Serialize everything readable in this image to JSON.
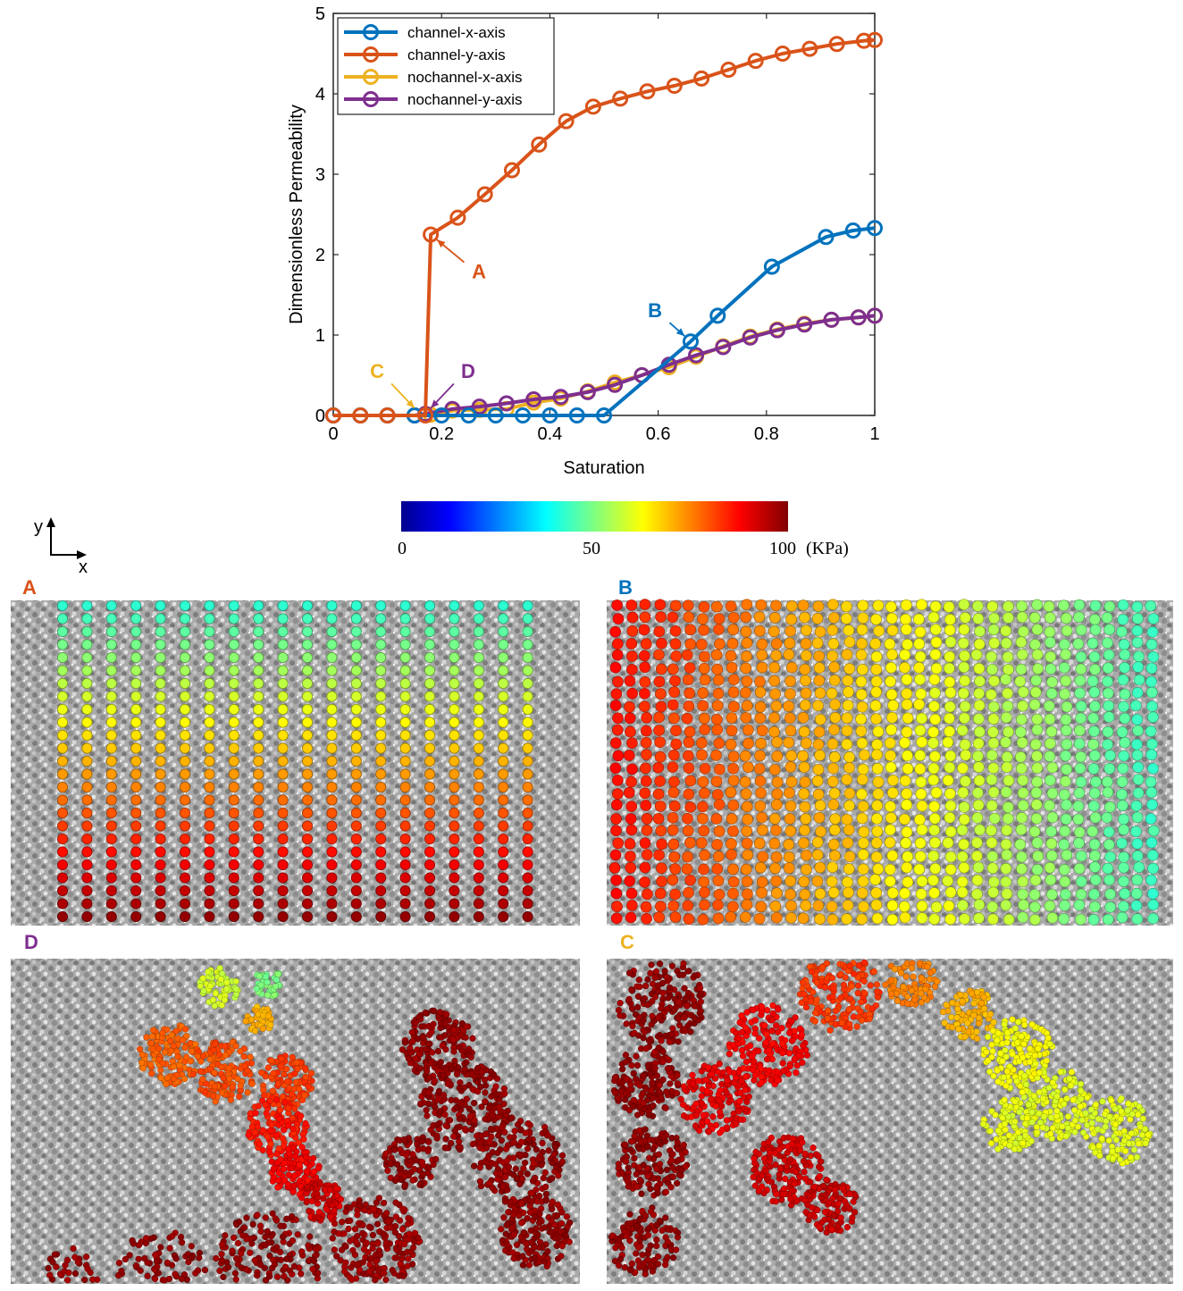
{
  "chart_data": {
    "type": "line",
    "xlabel": "Saturation",
    "ylabel": "Dimensionless Permeability",
    "xlim": [
      0,
      1
    ],
    "ylim": [
      0,
      5
    ],
    "xticks": [
      "0",
      "0.2",
      "0.4",
      "0.6",
      "0.8",
      "1"
    ],
    "yticks": [
      "0",
      "1",
      "2",
      "3",
      "4",
      "5"
    ],
    "legend_position": "top-left",
    "grid": false,
    "series": [
      {
        "name": "channel-x-axis",
        "color": "#0072BD",
        "points": [
          [
            0,
            0
          ],
          [
            0.05,
            0
          ],
          [
            0.1,
            0
          ],
          [
            0.15,
            0
          ],
          [
            0.2,
            0
          ],
          [
            0.25,
            0
          ],
          [
            0.3,
            0
          ],
          [
            0.35,
            0
          ],
          [
            0.4,
            0
          ],
          [
            0.45,
            0
          ],
          [
            0.5,
            0
          ],
          [
            0.66,
            0.92
          ],
          [
            0.71,
            1.24
          ],
          [
            0.81,
            1.85
          ],
          [
            0.91,
            2.22
          ],
          [
            0.96,
            2.3
          ],
          [
            1.0,
            2.33
          ]
        ]
      },
      {
        "name": "channel-y-axis",
        "color": "#D95319",
        "points": [
          [
            0,
            0
          ],
          [
            0.05,
            0
          ],
          [
            0.1,
            0
          ],
          [
            0.17,
            0
          ],
          [
            0.18,
            2.25
          ],
          [
            0.23,
            2.46
          ],
          [
            0.28,
            2.75
          ],
          [
            0.33,
            3.05
          ],
          [
            0.38,
            3.37
          ],
          [
            0.43,
            3.66
          ],
          [
            0.48,
            3.84
          ],
          [
            0.53,
            3.94
          ],
          [
            0.58,
            4.03
          ],
          [
            0.63,
            4.1
          ],
          [
            0.68,
            4.19
          ],
          [
            0.73,
            4.3
          ],
          [
            0.78,
            4.41
          ],
          [
            0.83,
            4.5
          ],
          [
            0.88,
            4.56
          ],
          [
            0.93,
            4.62
          ],
          [
            0.98,
            4.66
          ],
          [
            1.0,
            4.67
          ]
        ]
      },
      {
        "name": "nochannel-x-axis",
        "color": "#EDB120",
        "points": [
          [
            0,
            0
          ],
          [
            0.05,
            0
          ],
          [
            0.1,
            0
          ],
          [
            0.15,
            0
          ],
          [
            0.18,
            0.01
          ],
          [
            0.22,
            0.06
          ],
          [
            0.27,
            0.07
          ],
          [
            0.32,
            0.08
          ],
          [
            0.37,
            0.16
          ],
          [
            0.42,
            0.21
          ],
          [
            0.47,
            0.3
          ],
          [
            0.52,
            0.41
          ],
          [
            0.57,
            0.5
          ],
          [
            0.62,
            0.6
          ],
          [
            0.67,
            0.73
          ],
          [
            0.72,
            0.86
          ],
          [
            0.77,
            0.98
          ],
          [
            0.82,
            1.07
          ],
          [
            0.87,
            1.14
          ],
          [
            0.92,
            1.19
          ],
          [
            0.97,
            1.22
          ],
          [
            1.0,
            1.24
          ]
        ]
      },
      {
        "name": "nochannel-y-axis",
        "color": "#7E2F8E",
        "points": [
          [
            0,
            0
          ],
          [
            0.05,
            0
          ],
          [
            0.1,
            0
          ],
          [
            0.15,
            0
          ],
          [
            0.17,
            0.02
          ],
          [
            0.22,
            0.08
          ],
          [
            0.27,
            0.11
          ],
          [
            0.32,
            0.15
          ],
          [
            0.37,
            0.2
          ],
          [
            0.42,
            0.23
          ],
          [
            0.47,
            0.29
          ],
          [
            0.52,
            0.38
          ],
          [
            0.57,
            0.5
          ],
          [
            0.62,
            0.63
          ],
          [
            0.67,
            0.75
          ],
          [
            0.72,
            0.85
          ],
          [
            0.77,
            0.97
          ],
          [
            0.82,
            1.06
          ],
          [
            0.87,
            1.13
          ],
          [
            0.92,
            1.19
          ],
          [
            0.97,
            1.22
          ],
          [
            1.0,
            1.24
          ]
        ]
      }
    ],
    "annotations": [
      {
        "label": "A",
        "color": "#D95319",
        "point": [
          0.18,
          2.25
        ]
      },
      {
        "label": "B",
        "color": "#0072BD",
        "point": [
          0.66,
          0.92
        ]
      },
      {
        "label": "C",
        "color": "#EDB120",
        "point": [
          0.16,
          0.02
        ]
      },
      {
        "label": "D",
        "color": "#7E2F8E",
        "point": [
          0.17,
          0.02
        ]
      }
    ]
  },
  "colorbar": {
    "ticks": [
      "0",
      "50",
      "100"
    ],
    "unit": "(KPa)",
    "range": [
      0,
      100
    ],
    "colors": [
      "#00008F",
      "#0000FF",
      "#0080FF",
      "#00FFFF",
      "#80FF80",
      "#FFFF00",
      "#FF8000",
      "#FF0000",
      "#800000"
    ]
  },
  "axes_indicator": {
    "x": "x",
    "y": "y"
  },
  "panels": [
    {
      "label": "A",
      "color": "#D95319"
    },
    {
      "label": "B",
      "color": "#0072BD"
    },
    {
      "label": "D",
      "color": "#7E2F8E"
    },
    {
      "label": "C",
      "color": "#EDB120"
    }
  ]
}
